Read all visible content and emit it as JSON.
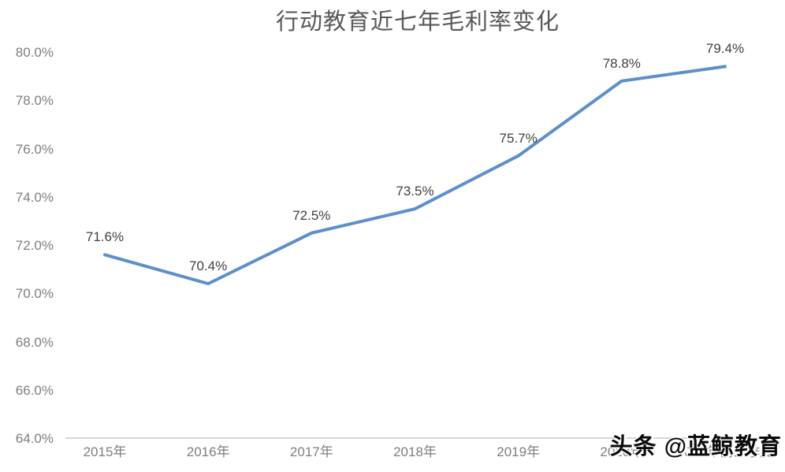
{
  "title": "行动教育近七年毛利率变化",
  "watermark": "头条 @蓝鲸教育",
  "chart_data": {
    "type": "line",
    "title": "行动教育近七年毛利率变化",
    "categories": [
      "2015年",
      "2016年",
      "2017年",
      "2018年",
      "2019年",
      "2020年",
      "2021年前三季度"
    ],
    "values": [
      71.6,
      70.4,
      72.5,
      73.5,
      75.7,
      78.8,
      79.4
    ],
    "data_labels": [
      "71.6%",
      "70.4%",
      "72.5%",
      "73.5%",
      "75.7%",
      "78.8%",
      "79.4%"
    ],
    "series_name": "毛利率",
    "xlabel": "",
    "ylabel": "",
    "ylim": [
      64,
      80
    ],
    "ytick_step": 2,
    "ytick_labels": [
      "64.0%",
      "66.0%",
      "68.0%",
      "70.0%",
      "72.0%",
      "74.0%",
      "76.0%",
      "78.0%",
      "80.0%"
    ],
    "line_color": "#5e8fcb",
    "axis_line_color": "#c8c8c8",
    "grid": false,
    "legend_position": "none"
  }
}
